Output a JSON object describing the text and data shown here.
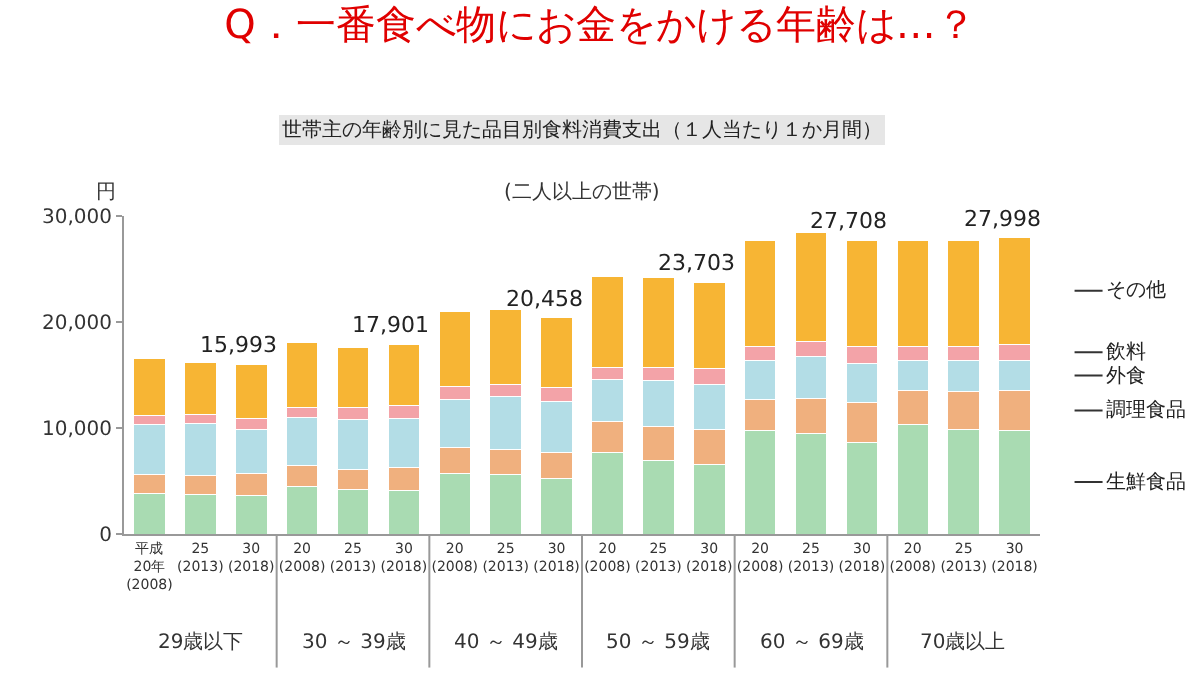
{
  "chart_data": {
    "type": "bar",
    "stacked": true,
    "title": "Q．一番食べ物にお金をかける年齢は…？",
    "subtitle": "世帯主の年齢別に見た品目別食料消費支出（１人当たり１か月間）",
    "ylabel": "円",
    "annotations": [
      "(二人以上の世帯)",
      "29歳以下",
      "30 ～ 39歳",
      "40 ～ 49歳",
      "50 ～ 59歳",
      "60 ～ 69歳",
      "70歳以上"
    ],
    "categories": [
      "平成\n20年\n(2008)",
      "25\n(2013)",
      "30\n(2018)",
      "20\n(2008)",
      "25\n(2013)",
      "30\n(2018)",
      "20\n(2008)",
      "25\n(2013)",
      "30\n(2018)",
      "20\n(2008)",
      "25\n(2013)",
      "30\n(2018)",
      "20\n(2008)",
      "25\n(2013)",
      "30\n(2018)",
      "20\n(2008)",
      "25\n(2013)",
      "30\n(2018)"
    ],
    "series": [
      {
        "name": "生鮮食品",
        "color": "#a9dbb2",
        "values": [
          3800,
          3700,
          3600,
          4500,
          4200,
          4100,
          5700,
          5600,
          5200,
          7700,
          6900,
          6600,
          9800,
          9500,
          8600,
          10300,
          9900,
          9800
        ]
      },
      {
        "name": "調理食品",
        "color": "#f0b07e",
        "values": [
          1800,
          1800,
          2100,
          2000,
          1900,
          2200,
          2500,
          2400,
          2500,
          2900,
          3200,
          3300,
          2900,
          3300,
          3800,
          3200,
          3500,
          3700
        ]
      },
      {
        "name": "外食",
        "color": "#b3dde6",
        "values": [
          4700,
          4900,
          4200,
          4500,
          4700,
          4600,
          4500,
          5000,
          4800,
          4000,
          4400,
          4200,
          3700,
          3900,
          3700,
          2900,
          3000,
          2900
        ]
      },
      {
        "name": "飲料",
        "color": "#f3a3a8",
        "values": [
          900,
          900,
          1000,
          900,
          1100,
          1200,
          1200,
          1100,
          1300,
          1100,
          1200,
          1500,
          1300,
          1500,
          1600,
          1300,
          1300,
          1500
        ]
      },
      {
        "name": "その他",
        "color": "#f7b534",
        "values": [
          5400,
          4900,
          5093,
          6200,
          5700,
          5801,
          7100,
          7100,
          6658,
          8600,
          8500,
          8103,
          10000,
          10200,
          10008,
          10000,
          10000,
          10098
        ]
      }
    ],
    "totals": [
      null,
      null,
      "15,993",
      null,
      null,
      "17,901",
      null,
      null,
      "20,458",
      null,
      null,
      "23,703",
      null,
      null,
      "27,708",
      null,
      null,
      "27,998"
    ],
    "ylim": [
      0,
      30000
    ],
    "yticks": [
      0,
      {
        "value": 10000,
        "label": "10,000"
      },
      {
        "value": 20000,
        "label": "20,000"
      },
      {
        "value": 30000,
        "label": "30,000"
      }
    ]
  }
}
